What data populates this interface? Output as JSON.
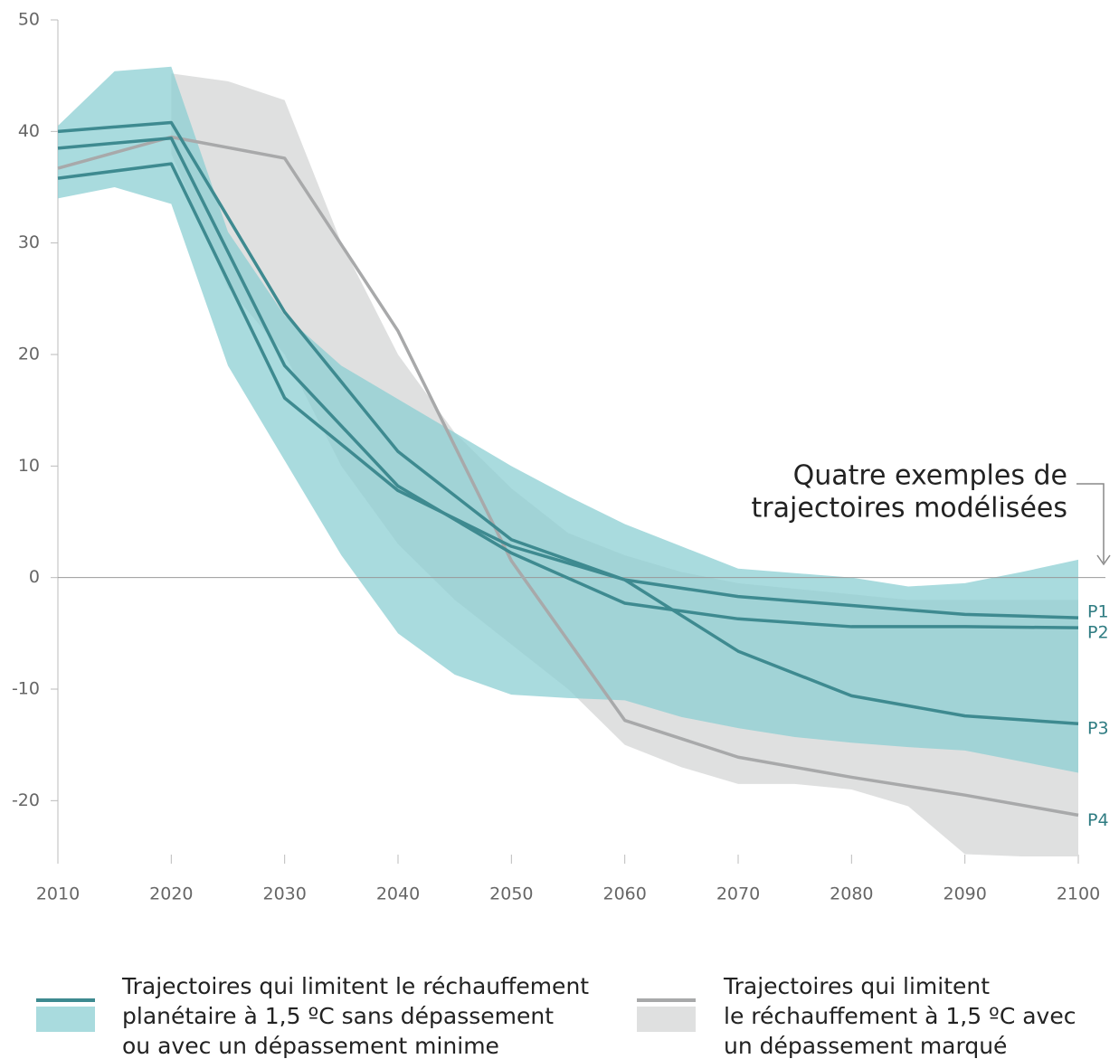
{
  "chart_data": {
    "type": "line",
    "x": [
      2010,
      2015,
      2020,
      2025,
      2030,
      2035,
      2040,
      2045,
      2050,
      2055,
      2060,
      2065,
      2070,
      2075,
      2080,
      2085,
      2090,
      2095,
      2100
    ],
    "bands": [
      {
        "legend": [
          "Trajectoires qui limitent",
          "le réchauffement à 1,5 ºC avec",
          "un dépassement marqué"
        ],
        "color": "#dcdddd",
        "line_color": "#a8a9aa",
        "upper": [
          null,
          null,
          45.2,
          44.5,
          42.8,
          30,
          20,
          13,
          8,
          4,
          2,
          0.5,
          -0.5,
          -1,
          -1.5,
          -2,
          -2,
          -2,
          -2
        ],
        "lower": [
          null,
          null,
          38,
          26,
          20,
          10,
          3,
          -2,
          -6,
          -10,
          -15,
          -17,
          -18.5,
          -18.5,
          -19,
          -20.5,
          -24.8,
          -25,
          -25
        ]
      },
      {
        "legend": [
          "Trajectoires qui limitent le réchauffement",
          "planétaire à 1,5 ºC sans dépassement",
          "ou avec un dépassement minime"
        ],
        "color": "#8ccfd3",
        "line_color": "#3e8a90",
        "upper": [
          40.5,
          45.4,
          45.8,
          31,
          23.5,
          19,
          16,
          13,
          10,
          7.3,
          4.8,
          2.8,
          0.8,
          0.4,
          0,
          -0.8,
          -0.5,
          0.5,
          1.6
        ],
        "lower": [
          34,
          35,
          33.5,
          19,
          10.5,
          2,
          -5,
          -8.7,
          -10.5,
          -10.8,
          -11,
          -12.5,
          -13.5,
          -14.3,
          -14.8,
          -15.2,
          -15.5,
          -16.5,
          -17.5
        ]
      }
    ],
    "series": [
      {
        "name": "P4",
        "color": "#a8a9aa",
        "label_color": "#2f7c82",
        "x": [
          2010,
          2020,
          2030,
          2040,
          2050,
          2060,
          2070,
          2080,
          2090,
          2100
        ],
        "values": [
          36.7,
          39.5,
          37.6,
          22.1,
          1.5,
          -12.8,
          -16.1,
          -17.9,
          -19.5,
          -21.3
        ]
      },
      {
        "name": "P1",
        "color": "#3e8a90",
        "label_color": "#2f7c82",
        "x": [
          2010,
          2020,
          2030,
          2040,
          2050,
          2060,
          2070,
          2080,
          2090,
          2100
        ],
        "values": [
          40.0,
          40.8,
          23.8,
          11.3,
          3.4,
          -0.2,
          -1.7,
          -2.5,
          -3.3,
          -3.6
        ]
      },
      {
        "name": "P2",
        "color": "#3e8a90",
        "label_color": "#2f7c82",
        "x": [
          2010,
          2020,
          2030,
          2040,
          2050,
          2060,
          2070,
          2080,
          2090,
          2100
        ],
        "values": [
          38.5,
          39.4,
          19,
          8.2,
          2.2,
          -2.3,
          -3.7,
          -4.4,
          -4.4,
          -4.5
        ]
      },
      {
        "name": "P3",
        "color": "#3e8a90",
        "label_color": "#2f7c82",
        "x": [
          2010,
          2020,
          2030,
          2040,
          2050,
          2060,
          2070,
          2080,
          2090,
          2100
        ],
        "values": [
          35.8,
          37.1,
          16.1,
          7.8,
          2.8,
          -0.2,
          -6.6,
          -10.6,
          -12.4,
          -13.1
        ]
      }
    ],
    "annotation": [
      "Quatre exemples de",
      "trajectoires modélisées"
    ],
    "xlim": [
      2010,
      2100
    ],
    "xticks": [
      2010,
      2020,
      2030,
      2040,
      2050,
      2060,
      2070,
      2080,
      2090,
      2100
    ],
    "ylim": [
      -25,
      50
    ],
    "yticks": [
      -20,
      -10,
      0,
      10,
      20,
      30,
      40,
      50
    ]
  }
}
